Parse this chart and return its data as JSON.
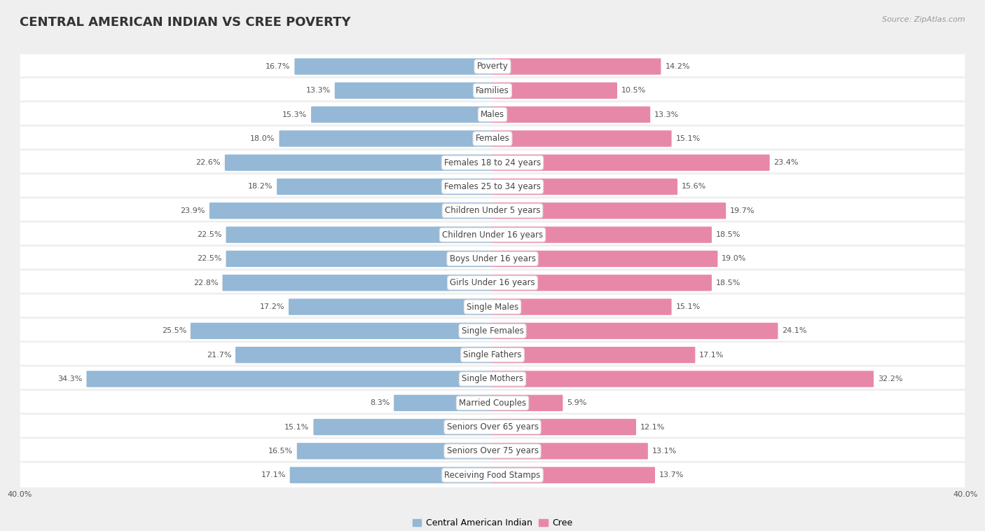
{
  "title": "CENTRAL AMERICAN INDIAN VS CREE POVERTY",
  "source": "Source: ZipAtlas.com",
  "categories": [
    "Poverty",
    "Families",
    "Males",
    "Females",
    "Females 18 to 24 years",
    "Females 25 to 34 years",
    "Children Under 5 years",
    "Children Under 16 years",
    "Boys Under 16 years",
    "Girls Under 16 years",
    "Single Males",
    "Single Females",
    "Single Fathers",
    "Single Mothers",
    "Married Couples",
    "Seniors Over 65 years",
    "Seniors Over 75 years",
    "Receiving Food Stamps"
  ],
  "left_values": [
    16.7,
    13.3,
    15.3,
    18.0,
    22.6,
    18.2,
    23.9,
    22.5,
    22.5,
    22.8,
    17.2,
    25.5,
    21.7,
    34.3,
    8.3,
    15.1,
    16.5,
    17.1
  ],
  "right_values": [
    14.2,
    10.5,
    13.3,
    15.1,
    23.4,
    15.6,
    19.7,
    18.5,
    19.0,
    18.5,
    15.1,
    24.1,
    17.1,
    32.2,
    5.9,
    12.1,
    13.1,
    13.7
  ],
  "left_color": "#94b8d6",
  "right_color": "#e888a8",
  "row_bg_color": "#ffffff",
  "outer_bg_color": "#efefef",
  "max_val": 40.0,
  "left_label": "Central American Indian",
  "right_label": "Cree",
  "title_fontsize": 13,
  "source_fontsize": 8,
  "value_fontsize": 8,
  "category_fontsize": 8.5,
  "legend_fontsize": 9,
  "bar_height": 0.58
}
